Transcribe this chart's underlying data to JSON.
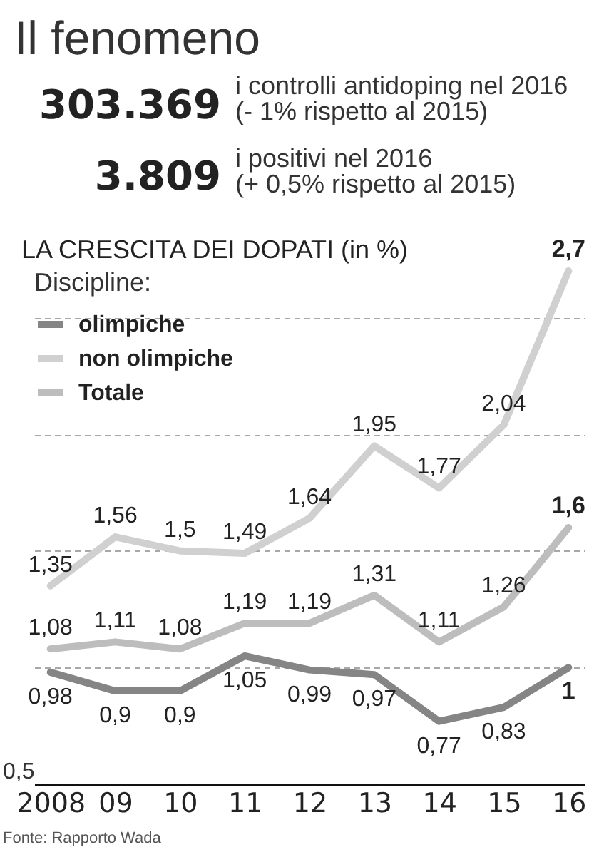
{
  "chart_data": {
    "type": "line",
    "title": "Il fenomeno",
    "subtitle": "LA CRESCITA DEI DOPATI (in %)",
    "legend_title": "Discipline:",
    "categories": [
      "2008",
      "09",
      "10",
      "11",
      "12",
      "13",
      "14",
      "15",
      "16"
    ],
    "series": [
      {
        "name": "olimpiche",
        "color": "#858585",
        "values": [
          0.98,
          0.9,
          0.9,
          1.05,
          0.99,
          0.97,
          0.77,
          0.83,
          1
        ],
        "value_labels": [
          "0,98",
          "0,9",
          "0,9",
          "1,05",
          "0,99",
          "0,97",
          "0,77",
          "0,83",
          "1"
        ]
      },
      {
        "name": "non olimpiche",
        "color": "#d0d0d0",
        "values": [
          1.35,
          1.56,
          1.5,
          1.49,
          1.64,
          1.95,
          1.77,
          2.04,
          2.7
        ],
        "value_labels": [
          "1,35",
          "1,56",
          "1,5",
          "1,49",
          "1,64",
          "1,95",
          "1,77",
          "2,04",
          "2,7"
        ]
      },
      {
        "name": "Totale",
        "color": "#bdbdbd",
        "values": [
          1.08,
          1.11,
          1.08,
          1.19,
          1.19,
          1.31,
          1.11,
          1.26,
          1.6
        ],
        "value_labels": [
          "1,08",
          "1,11",
          "1,08",
          "1,19",
          "1,19",
          "1,31",
          "1,11",
          "1,26",
          "1,6"
        ]
      }
    ],
    "yticks": [
      {
        "value": 0.5,
        "label": null
      },
      {
        "value": 1,
        "label": null
      },
      {
        "value": 1.5,
        "label": null
      },
      {
        "value": 2,
        "label": null
      },
      {
        "value": 2.5,
        "label": null
      }
    ],
    "tick_labels": "x",
    "grid": "y",
    "legend": "top left",
    "line_style": "solid",
    "annotations": [
      "303.369",
      "i controlli antidoping nel 2016",
      "(- 1% rispetto al 2015)",
      "3.809",
      "i positivi nel 2016",
      "(+ 0,5% rispetto al 2015)",
      "Fonte: Rapporto Wada",
      "0,5"
    ]
  }
}
